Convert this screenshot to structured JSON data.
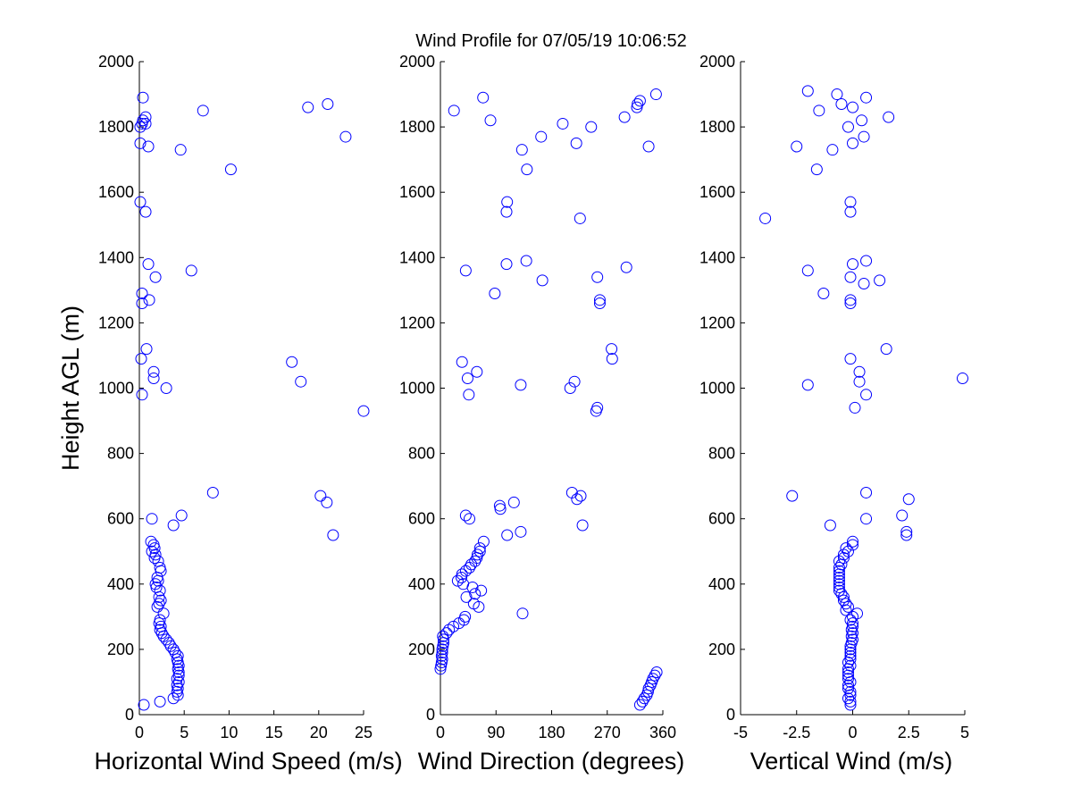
{
  "figure": {
    "title": "Wind Profile for  07/05/19 10:06:52",
    "marker_color": "#0000ff"
  },
  "chart_data": [
    {
      "type": "scatter",
      "xlabel": "Horizontal Wind Speed (m/s)",
      "ylabel": "Height AGL (m)",
      "xlim": [
        0,
        25
      ],
      "ylim": [
        0,
        2000
      ],
      "xticks": [
        0,
        5,
        10,
        15,
        20,
        25
      ],
      "xtick_labels": [
        "0",
        "5",
        "10",
        "15",
        "20",
        "25"
      ],
      "yticks": [
        0,
        200,
        400,
        600,
        800,
        1000,
        1200,
        1400,
        1600,
        1800,
        2000
      ],
      "ytick_labels": [
        "0",
        "200",
        "400",
        "600",
        "800",
        "1000",
        "1200",
        "1400",
        "1600",
        "1800",
        "2000"
      ],
      "grid": false,
      "points": [
        [
          0.5,
          30
        ],
        [
          2.3,
          40
        ],
        [
          3.8,
          50
        ],
        [
          4.3,
          60
        ],
        [
          4.2,
          70
        ],
        [
          4.3,
          80
        ],
        [
          4.2,
          90
        ],
        [
          4.4,
          100
        ],
        [
          4.2,
          110
        ],
        [
          4.4,
          120
        ],
        [
          4.4,
          130
        ],
        [
          4.3,
          140
        ],
        [
          4.4,
          150
        ],
        [
          4.3,
          160
        ],
        [
          4.2,
          170
        ],
        [
          4.3,
          180
        ],
        [
          4.0,
          190
        ],
        [
          3.8,
          200
        ],
        [
          3.5,
          210
        ],
        [
          3.3,
          220
        ],
        [
          3.0,
          230
        ],
        [
          2.7,
          240
        ],
        [
          2.5,
          250
        ],
        [
          2.3,
          260
        ],
        [
          2.4,
          270
        ],
        [
          2.2,
          280
        ],
        [
          2.3,
          290
        ],
        [
          2.7,
          310
        ],
        [
          2.0,
          330
        ],
        [
          2.2,
          340
        ],
        [
          2.4,
          350
        ],
        [
          2.2,
          360
        ],
        [
          2.3,
          380
        ],
        [
          1.9,
          390
        ],
        [
          1.8,
          400
        ],
        [
          2.1,
          410
        ],
        [
          2.0,
          420
        ],
        [
          2.4,
          440
        ],
        [
          2.3,
          450
        ],
        [
          2.1,
          470
        ],
        [
          1.7,
          480
        ],
        [
          1.8,
          490
        ],
        [
          1.4,
          500
        ],
        [
          1.7,
          510
        ],
        [
          1.6,
          520
        ],
        [
          1.3,
          530
        ],
        [
          1.4,
          600
        ],
        [
          3.8,
          580
        ],
        [
          4.7,
          610
        ],
        [
          8.2,
          680
        ],
        [
          20.2,
          670
        ],
        [
          20.9,
          650
        ],
        [
          21.6,
          550
        ],
        [
          25.0,
          930
        ],
        [
          0.3,
          980
        ],
        [
          3.0,
          1000
        ],
        [
          1.6,
          1030
        ],
        [
          1.6,
          1050
        ],
        [
          18.0,
          1020
        ],
        [
          17.0,
          1080
        ],
        [
          0.2,
          1090
        ],
        [
          0.8,
          1120
        ],
        [
          0.3,
          1260
        ],
        [
          1.1,
          1270
        ],
        [
          0.3,
          1290
        ],
        [
          1.8,
          1340
        ],
        [
          5.8,
          1360
        ],
        [
          1.0,
          1380
        ],
        [
          0.7,
          1540
        ],
        [
          0.1,
          1570
        ],
        [
          10.2,
          1670
        ],
        [
          4.6,
          1730
        ],
        [
          1.0,
          1740
        ],
        [
          0.1,
          1750
        ],
        [
          23.0,
          1770
        ],
        [
          0.1,
          1800
        ],
        [
          0.3,
          1810
        ],
        [
          0.7,
          1810
        ],
        [
          0.4,
          1820
        ],
        [
          0.7,
          1830
        ],
        [
          7.1,
          1850
        ],
        [
          18.8,
          1860
        ],
        [
          21.0,
          1870
        ],
        [
          0.4,
          1890
        ]
      ]
    },
    {
      "type": "scatter",
      "xlabel": "Wind Direction (degrees)",
      "ylabel": "",
      "xlim": [
        0,
        360
      ],
      "ylim": [
        0,
        2000
      ],
      "xticks": [
        0,
        90,
        180,
        270,
        360
      ],
      "xtick_labels": [
        "0",
        "90",
        "180",
        "270",
        "360"
      ],
      "yticks": [
        0,
        200,
        400,
        600,
        800,
        1000,
        1200,
        1400,
        1600,
        1800,
        2000
      ],
      "ytick_labels": [
        "0",
        "200",
        "400",
        "600",
        "800",
        "1000",
        "1200",
        "1400",
        "1600",
        "1800",
        "2000"
      ],
      "grid": false,
      "points": [
        [
          323,
          30
        ],
        [
          327,
          40
        ],
        [
          330,
          50
        ],
        [
          334,
          60
        ],
        [
          336,
          70
        ],
        [
          337,
          80
        ],
        [
          340,
          90
        ],
        [
          342,
          100
        ],
        [
          344,
          110
        ],
        [
          347,
          120
        ],
        [
          350,
          130
        ],
        [
          0,
          140
        ],
        [
          1,
          150
        ],
        [
          2,
          160
        ],
        [
          3,
          170
        ],
        [
          2,
          180
        ],
        [
          3,
          190
        ],
        [
          3,
          200
        ],
        [
          4,
          210
        ],
        [
          5,
          220
        ],
        [
          5,
          230
        ],
        [
          4,
          240
        ],
        [
          10,
          250
        ],
        [
          14,
          260
        ],
        [
          21,
          270
        ],
        [
          30,
          280
        ],
        [
          38,
          290
        ],
        [
          40,
          300
        ],
        [
          133,
          310
        ],
        [
          62,
          330
        ],
        [
          54,
          340
        ],
        [
          42,
          360
        ],
        [
          56,
          370
        ],
        [
          66,
          380
        ],
        [
          52,
          390
        ],
        [
          37,
          400
        ],
        [
          28,
          410
        ],
        [
          34,
          420
        ],
        [
          35,
          430
        ],
        [
          41,
          440
        ],
        [
          47,
          450
        ],
        [
          50,
          460
        ],
        [
          56,
          470
        ],
        [
          59,
          480
        ],
        [
          60,
          490
        ],
        [
          64,
          500
        ],
        [
          64,
          510
        ],
        [
          70,
          530
        ],
        [
          108,
          550
        ],
        [
          130,
          560
        ],
        [
          230,
          580
        ],
        [
          47,
          600
        ],
        [
          41,
          610
        ],
        [
          97,
          630
        ],
        [
          96,
          640
        ],
        [
          119,
          650
        ],
        [
          221,
          660
        ],
        [
          227,
          670
        ],
        [
          213,
          680
        ],
        [
          252,
          930
        ],
        [
          254,
          940
        ],
        [
          46,
          980
        ],
        [
          210,
          1000
        ],
        [
          130,
          1010
        ],
        [
          217,
          1020
        ],
        [
          44,
          1030
        ],
        [
          59,
          1050
        ],
        [
          35,
          1080
        ],
        [
          278,
          1090
        ],
        [
          277,
          1120
        ],
        [
          258,
          1260
        ],
        [
          258,
          1270
        ],
        [
          88,
          1290
        ],
        [
          165,
          1330
        ],
        [
          254,
          1340
        ],
        [
          41,
          1360
        ],
        [
          301,
          1370
        ],
        [
          107,
          1380
        ],
        [
          139,
          1390
        ],
        [
          226,
          1520
        ],
        [
          107,
          1540
        ],
        [
          108,
          1570
        ],
        [
          140,
          1670
        ],
        [
          132,
          1730
        ],
        [
          337,
          1740
        ],
        [
          220,
          1750
        ],
        [
          163,
          1770
        ],
        [
          244,
          1800
        ],
        [
          198,
          1810
        ],
        [
          81,
          1820
        ],
        [
          298,
          1830
        ],
        [
          22,
          1850
        ],
        [
          318,
          1860
        ],
        [
          319,
          1870
        ],
        [
          323,
          1880
        ],
        [
          69,
          1890
        ],
        [
          349,
          1900
        ]
      ]
    },
    {
      "type": "scatter",
      "xlabel": "Vertical Wind (m/s)",
      "ylabel": "",
      "xlim": [
        -5,
        5
      ],
      "ylim": [
        0,
        2000
      ],
      "xticks": [
        -5,
        -2.5,
        0,
        2.5,
        5
      ],
      "xtick_labels": [
        "-5",
        "-2.5",
        "0",
        "2.5",
        "5"
      ],
      "yticks": [
        0,
        200,
        400,
        600,
        800,
        1000,
        1200,
        1400,
        1600,
        1800,
        2000
      ],
      "ytick_labels": [
        "0",
        "200",
        "400",
        "600",
        "800",
        "1000",
        "1200",
        "1400",
        "1600",
        "1800",
        "2000"
      ],
      "grid": false,
      "points": [
        [
          -0.1,
          30
        ],
        [
          -0.1,
          40
        ],
        [
          -0.2,
          50
        ],
        [
          -0.1,
          60
        ],
        [
          -0.1,
          70
        ],
        [
          -0.2,
          80
        ],
        [
          -0.2,
          90
        ],
        [
          -0.1,
          100
        ],
        [
          -0.2,
          110
        ],
        [
          -0.2,
          120
        ],
        [
          -0.2,
          130
        ],
        [
          -0.2,
          140
        ],
        [
          -0.1,
          150
        ],
        [
          -0.2,
          160
        ],
        [
          -0.1,
          170
        ],
        [
          -0.1,
          180
        ],
        [
          -0.1,
          190
        ],
        [
          -0.1,
          200
        ],
        [
          -0.1,
          210
        ],
        [
          -0.05,
          220
        ],
        [
          0.0,
          230
        ],
        [
          -0.05,
          240
        ],
        [
          0.0,
          250
        ],
        [
          -0.05,
          260
        ],
        [
          0.0,
          270
        ],
        [
          0.0,
          280
        ],
        [
          -0.1,
          290
        ],
        [
          0.0,
          300
        ],
        [
          0.2,
          310
        ],
        [
          -0.3,
          320
        ],
        [
          -0.2,
          330
        ],
        [
          -0.3,
          340
        ],
        [
          -0.4,
          350
        ],
        [
          -0.4,
          360
        ],
        [
          -0.5,
          370
        ],
        [
          -0.6,
          380
        ],
        [
          -0.6,
          390
        ],
        [
          -0.6,
          400
        ],
        [
          -0.6,
          410
        ],
        [
          -0.6,
          420
        ],
        [
          -0.6,
          430
        ],
        [
          -0.6,
          440
        ],
        [
          -0.6,
          450
        ],
        [
          -0.5,
          460
        ],
        [
          -0.6,
          470
        ],
        [
          -0.4,
          480
        ],
        [
          -0.4,
          490
        ],
        [
          -0.2,
          500
        ],
        [
          -0.3,
          510
        ],
        [
          0.0,
          520
        ],
        [
          0.0,
          530
        ],
        [
          2.4,
          550
        ],
        [
          2.4,
          560
        ],
        [
          -1.0,
          580
        ],
        [
          0.6,
          600
        ],
        [
          2.2,
          610
        ],
        [
          2.5,
          660
        ],
        [
          -2.7,
          670
        ],
        [
          0.6,
          680
        ],
        [
          0.1,
          940
        ],
        [
          0.6,
          980
        ],
        [
          -2.0,
          1010
        ],
        [
          0.3,
          1020
        ],
        [
          0.3,
          1050
        ],
        [
          4.9,
          1030
        ],
        [
          -0.1,
          1090
        ],
        [
          1.5,
          1120
        ],
        [
          -0.1,
          1260
        ],
        [
          -0.1,
          1270
        ],
        [
          -1.3,
          1290
        ],
        [
          0.5,
          1320
        ],
        [
          1.2,
          1330
        ],
        [
          -0.1,
          1340
        ],
        [
          -2.0,
          1360
        ],
        [
          0.0,
          1380
        ],
        [
          0.6,
          1390
        ],
        [
          -3.9,
          1520
        ],
        [
          -0.1,
          1540
        ],
        [
          -0.1,
          1570
        ],
        [
          -1.6,
          1670
        ],
        [
          -0.9,
          1730
        ],
        [
          -2.5,
          1740
        ],
        [
          0.0,
          1750
        ],
        [
          0.5,
          1770
        ],
        [
          -0.2,
          1800
        ],
        [
          0.4,
          1820
        ],
        [
          1.6,
          1830
        ],
        [
          -1.5,
          1850
        ],
        [
          0.0,
          1860
        ],
        [
          -0.5,
          1870
        ],
        [
          0.6,
          1890
        ],
        [
          -0.7,
          1900
        ],
        [
          -2.0,
          1910
        ]
      ]
    }
  ]
}
